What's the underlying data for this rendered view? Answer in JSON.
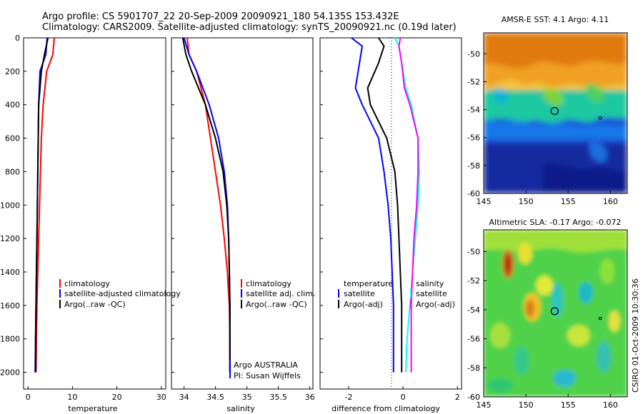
{
  "header": {
    "line1": "Argo profile: CS 5901707_22 20-Sep-2009 20090921_180 54.135S 153.432E",
    "line2": "Climatology: CARS2009. Satellite-adjusted climatology: synTS_20090921.nc (0.19d later)"
  },
  "footer": {
    "credit": "CSIRO 01-Oct-2009 10:30:36"
  },
  "colors": {
    "climatology": "#ff0000",
    "satellite": "#0000ff",
    "argo": "#000000",
    "salinity_satellite": "#00ffff",
    "salinity_argo": "#ff00ff"
  },
  "chart_data": [
    {
      "type": "line",
      "id": "temperature",
      "xlabel": "temperature",
      "ylabel": "",
      "xlim": [
        -1,
        31
      ],
      "ylim": [
        2100,
        0
      ],
      "xticks": [
        "0",
        "10",
        "20",
        "30"
      ],
      "yticks": [
        "0",
        "200",
        "400",
        "600",
        "800",
        "1000",
        "1200",
        "1400",
        "1600",
        "1800",
        "2000"
      ],
      "legend": [
        "climatology",
        "satellite-adjusted climatology",
        "Argo(..raw -QC)"
      ],
      "series": [
        {
          "name": "climatology",
          "color": "#ff0000",
          "x": [
            5.9,
            5.6,
            4.2,
            3.4,
            3.0,
            2.8,
            2.6,
            2.4,
            2.2,
            2.0,
            1.9,
            1.8
          ],
          "y": [
            0,
            100,
            200,
            400,
            600,
            800,
            1000,
            1200,
            1400,
            1600,
            1800,
            2000
          ]
        },
        {
          "name": "satellite-adjusted climatology",
          "color": "#0000ff",
          "x": [
            4.3,
            4.0,
            2.7,
            2.4,
            2.3,
            2.2,
            2.1,
            2.0,
            1.9,
            1.8,
            1.7,
            1.6
          ],
          "y": [
            0,
            100,
            200,
            400,
            600,
            800,
            1000,
            1200,
            1400,
            1600,
            1800,
            2000
          ]
        },
        {
          "name": "Argo(..raw -QC)",
          "color": "#000000",
          "x": [
            4.5,
            3.7,
            3.0,
            2.4,
            2.3,
            2.2,
            2.1,
            2.0,
            1.9,
            1.8,
            1.7,
            1.7
          ],
          "y": [
            0,
            100,
            200,
            400,
            600,
            800,
            1000,
            1200,
            1400,
            1600,
            1800,
            2000
          ]
        }
      ]
    },
    {
      "type": "line",
      "id": "salinity",
      "xlabel": "salinity",
      "xlim": [
        33.8,
        36.05
      ],
      "ylim": [
        2100,
        0
      ],
      "xticks": [
        "34",
        "34.5",
        "35",
        "35.5",
        "36"
      ],
      "legend": [
        "climatology",
        "satellite adj. clim.",
        "Argo(..raw -QC)"
      ],
      "series": [
        {
          "name": "climatology",
          "color": "#ff0000",
          "x": [
            34.05,
            34.08,
            34.2,
            34.34,
            34.42,
            34.5,
            34.58,
            34.64,
            34.69,
            34.72,
            34.73,
            34.73
          ],
          "y": [
            0,
            100,
            200,
            400,
            600,
            800,
            1000,
            1200,
            1400,
            1600,
            1800,
            2000
          ]
        },
        {
          "name": "satellite adj. clim.",
          "color": "#0000ff",
          "x": [
            34.0,
            34.08,
            34.2,
            34.4,
            34.55,
            34.64,
            34.69,
            34.71,
            34.72,
            34.73,
            34.73,
            34.73
          ],
          "y": [
            0,
            100,
            200,
            400,
            600,
            800,
            1000,
            1200,
            1400,
            1600,
            1800,
            2000
          ]
        },
        {
          "name": "Argo(..raw -QC)",
          "color": "#000000",
          "x": [
            33.98,
            34.03,
            34.12,
            34.34,
            34.5,
            34.62,
            34.68,
            34.71,
            34.72,
            34.73,
            34.73,
            34.73
          ],
          "y": [
            0,
            100,
            200,
            400,
            600,
            800,
            1000,
            1200,
            1400,
            1600,
            1800,
            2000
          ]
        }
      ],
      "annotations": [
        "Argo AUSTRALIA",
        "PI: Susan Wijffels"
      ]
    },
    {
      "type": "line",
      "id": "difference",
      "xlabel": "difference from climatology",
      "xlim": [
        -3.05,
        2.15
      ],
      "ylim": [
        2100,
        0
      ],
      "xticks": [
        "-2",
        "0",
        "2"
      ],
      "legend": {
        "temperature_title": "temperature",
        "salinity_title": "salinity",
        "items": [
          "satellite",
          "Argo(-adj)",
          "satellite",
          "Argo(-adj)"
        ]
      },
      "series": [
        {
          "name": "satellite",
          "color": "#0000ff",
          "x": [
            -1.9,
            -1.5,
            -1.6,
            -1.75,
            -1.5,
            -0.9,
            -0.7,
            -0.55,
            -0.45,
            -0.4,
            -0.35,
            -0.35,
            -0.35
          ],
          "y": [
            0,
            50,
            150,
            300,
            400,
            600,
            800,
            1000,
            1200,
            1400,
            1600,
            1800,
            2000
          ]
        },
        {
          "name": "Argo(-adj)",
          "color": "#000000",
          "x": [
            -0.9,
            -0.7,
            -0.9,
            -1.3,
            -1.2,
            -0.6,
            -0.3,
            -0.2,
            -0.15,
            -0.1,
            -0.05,
            -0.05,
            -0.05
          ],
          "y": [
            0,
            50,
            150,
            300,
            400,
            600,
            800,
            1000,
            1200,
            1400,
            1600,
            1800,
            2000
          ]
        },
        {
          "name": "satellite",
          "color": "#00ffff",
          "x": [
            -0.3,
            -0.15,
            -0.05,
            0.1,
            0.3,
            0.55,
            0.6,
            0.55,
            0.45,
            0.35,
            0.25,
            0.15,
            0.1
          ],
          "y": [
            0,
            50,
            150,
            300,
            400,
            600,
            800,
            1000,
            1200,
            1400,
            1600,
            1800,
            2000
          ]
        },
        {
          "name": "Argo(-adj)",
          "color": "#ff00ff",
          "x": [
            -0.1,
            -0.15,
            -0.05,
            0.05,
            0.25,
            0.55,
            0.55,
            0.5,
            0.4,
            0.35,
            0.3,
            0.3,
            0.3
          ],
          "y": [
            0,
            50,
            150,
            300,
            400,
            600,
            800,
            1000,
            1200,
            1400,
            1600,
            1800,
            2000
          ]
        }
      ]
    },
    {
      "type": "heatmap",
      "id": "sst_map",
      "title": "AMSR-E SST: 4.1 Argo: 4.11",
      "xlim": [
        145,
        162
      ],
      "ylim": [
        -60,
        -48.5
      ],
      "xticks": [
        "145",
        "150",
        "155",
        "160"
      ],
      "yticks": [
        "-50",
        "-52",
        "-54",
        "-56",
        "-58",
        "-60"
      ],
      "profile_marker": {
        "lon": 153.4,
        "lat": -54.1
      },
      "secondary_marker": {
        "lon": 158.8,
        "lat": -54.6
      }
    },
    {
      "type": "heatmap",
      "id": "sla_map",
      "title": "Altimetric SLA: -0.17 Argo: -0.072",
      "xlim": [
        145,
        162
      ],
      "ylim": [
        -60,
        -48.5
      ],
      "xticks": [
        "145",
        "150",
        "155",
        "160"
      ],
      "yticks": [
        "-50",
        "-52",
        "-54",
        "-56",
        "-58",
        "-60"
      ],
      "profile_marker": {
        "lon": 153.4,
        "lat": -54.1
      },
      "secondary_marker": {
        "lon": 158.8,
        "lat": -54.6
      }
    }
  ]
}
